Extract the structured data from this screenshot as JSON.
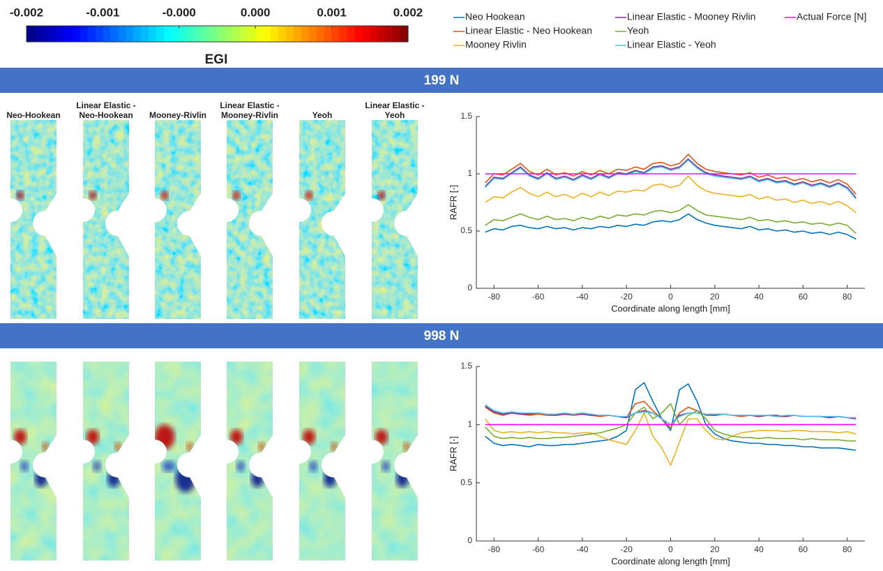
{
  "colorbar": {
    "label": "EGI",
    "lim": [
      -0.002,
      0.002
    ],
    "ticks": [
      -0.002,
      {
        "value": -0.0012,
        "label": "-0.001"
      },
      {
        "value": -0.0004,
        "label": "-0.000"
      },
      {
        "value": 0.0004,
        "label": "0.000"
      },
      {
        "value": 0.0012,
        "label": "0.001"
      },
      0.002
    ]
  },
  "panels": [
    {
      "title": "199 N",
      "specimen_labels": [
        [
          "Neo-Hookean"
        ],
        [
          "Linear Elastic -",
          "Neo-Hookean"
        ],
        [
          "Mooney-Rivlin"
        ],
        [
          "Linear Elastic -",
          "Mooney-Rivlin"
        ],
        [
          "Yeoh"
        ],
        [
          "Linear Elastic -",
          "Yeoh"
        ]
      ]
    },
    {
      "title": "998 N"
    }
  ],
  "chart_data": [
    {
      "type": "line",
      "xlabel": "Coordinate along length [mm]",
      "ylabel": "RAFR [-]",
      "xlim": [
        -88,
        88
      ],
      "ylim": [
        0,
        1.5
      ],
      "xticks": [
        -80,
        -60,
        -40,
        -20,
        0,
        20,
        40,
        60,
        80
      ],
      "yticks": [
        0,
        0.5,
        1,
        1.5
      ],
      "x": [
        -84,
        -80,
        -76,
        -72,
        -68,
        -64,
        -60,
        -56,
        -52,
        -48,
        -44,
        -40,
        -36,
        -32,
        -28,
        -24,
        -20,
        -16,
        -12,
        -8,
        -4,
        0,
        4,
        8,
        12,
        16,
        20,
        24,
        28,
        32,
        36,
        40,
        44,
        48,
        52,
        56,
        60,
        64,
        68,
        72,
        76,
        80,
        84
      ],
      "series": [
        {
          "name": "Neo Hookean",
          "color": "#0072BD",
          "values": [
            0.49,
            0.52,
            0.51,
            0.54,
            0.55,
            0.53,
            0.52,
            0.54,
            0.52,
            0.53,
            0.51,
            0.53,
            0.52,
            0.54,
            0.53,
            0.55,
            0.54,
            0.56,
            0.55,
            0.58,
            0.59,
            0.58,
            0.6,
            0.65,
            0.6,
            0.57,
            0.55,
            0.54,
            0.53,
            0.52,
            0.54,
            0.51,
            0.52,
            0.5,
            0.51,
            0.49,
            0.5,
            0.48,
            0.49,
            0.47,
            0.49,
            0.47,
            0.43
          ]
        },
        {
          "name": "Linear Elastic - Neo Hookean",
          "color": "#D95319",
          "values": [
            0.92,
            1.0,
            0.99,
            1.04,
            1.09,
            1.02,
            0.99,
            1.04,
            0.99,
            1.01,
            0.98,
            1.02,
            0.99,
            1.03,
            1.0,
            1.04,
            1.03,
            1.06,
            1.04,
            1.09,
            1.1,
            1.07,
            1.09,
            1.17,
            1.09,
            1.04,
            1.02,
            1.01,
            1.0,
            0.99,
            1.01,
            0.97,
            0.99,
            0.96,
            0.97,
            0.94,
            0.96,
            0.93,
            0.95,
            0.92,
            0.95,
            0.91,
            0.82
          ]
        },
        {
          "name": "Mooney Rivlin",
          "color": "#EDB120",
          "values": [
            0.75,
            0.8,
            0.79,
            0.84,
            0.88,
            0.83,
            0.8,
            0.84,
            0.8,
            0.82,
            0.79,
            0.83,
            0.8,
            0.84,
            0.81,
            0.85,
            0.84,
            0.86,
            0.85,
            0.9,
            0.91,
            0.88,
            0.9,
            0.98,
            0.9,
            0.85,
            0.83,
            0.82,
            0.81,
            0.8,
            0.82,
            0.78,
            0.8,
            0.77,
            0.78,
            0.75,
            0.77,
            0.74,
            0.76,
            0.73,
            0.76,
            0.72,
            0.66
          ]
        },
        {
          "name": "Linear Elastic - Mooney Rivlin",
          "color": "#7E2F8E",
          "values": [
            0.89,
            0.97,
            0.96,
            1.01,
            1.06,
            0.99,
            0.96,
            1.01,
            0.96,
            0.98,
            0.95,
            0.99,
            0.96,
            1.0,
            0.97,
            1.01,
            1.0,
            1.03,
            1.01,
            1.06,
            1.07,
            1.04,
            1.06,
            1.13,
            1.06,
            1.01,
            0.99,
            0.98,
            0.97,
            0.96,
            0.98,
            0.94,
            0.96,
            0.93,
            0.94,
            0.91,
            0.93,
            0.9,
            0.92,
            0.89,
            0.92,
            0.88,
            0.79
          ]
        },
        {
          "name": "Yeoh",
          "color": "#77AC30",
          "values": [
            0.55,
            0.6,
            0.59,
            0.62,
            0.65,
            0.62,
            0.6,
            0.63,
            0.6,
            0.61,
            0.59,
            0.62,
            0.6,
            0.63,
            0.61,
            0.64,
            0.63,
            0.65,
            0.64,
            0.67,
            0.68,
            0.66,
            0.68,
            0.73,
            0.68,
            0.64,
            0.63,
            0.62,
            0.61,
            0.6,
            0.62,
            0.59,
            0.6,
            0.58,
            0.59,
            0.57,
            0.58,
            0.56,
            0.57,
            0.55,
            0.57,
            0.55,
            0.48
          ]
        },
        {
          "name": "Linear Elastic - Yeoh",
          "color": "#4DBEEE",
          "values": [
            0.88,
            0.96,
            0.95,
            1.0,
            1.05,
            0.98,
            0.95,
            1.0,
            0.95,
            0.97,
            0.94,
            0.98,
            0.95,
            0.99,
            0.96,
            1.0,
            0.99,
            1.02,
            1.0,
            1.05,
            1.06,
            1.03,
            1.05,
            1.12,
            1.05,
            1.0,
            0.98,
            0.97,
            0.96,
            0.95,
            0.97,
            0.93,
            0.95,
            0.92,
            0.93,
            0.9,
            0.92,
            0.89,
            0.91,
            0.88,
            0.91,
            0.87,
            0.78
          ]
        },
        {
          "name": "Actual Force [N]",
          "color": "#FF00FF",
          "values": [
            1,
            1,
            1,
            1,
            1,
            1,
            1,
            1,
            1,
            1,
            1,
            1,
            1,
            1,
            1,
            1,
            1,
            1,
            1,
            1,
            1,
            1,
            1,
            1,
            1,
            1,
            1,
            1,
            1,
            1,
            1,
            1,
            1,
            1,
            1,
            1,
            1,
            1,
            1,
            1,
            1,
            1,
            1
          ]
        }
      ]
    },
    {
      "type": "line",
      "xlabel": "Coordinate along length [mm]",
      "ylabel": "RAFR [-]",
      "xlim": [
        -88,
        88
      ],
      "ylim": [
        0,
        1.5
      ],
      "xticks": [
        -80,
        -60,
        -40,
        -20,
        0,
        20,
        40,
        60,
        80
      ],
      "yticks": [
        0,
        0.5,
        1,
        1.5
      ],
      "x": [
        -84,
        -80,
        -76,
        -72,
        -68,
        -64,
        -60,
        -56,
        -52,
        -48,
        -44,
        -40,
        -36,
        -32,
        -28,
        -24,
        -20,
        -16,
        -12,
        -8,
        -4,
        0,
        4,
        8,
        12,
        16,
        20,
        24,
        28,
        32,
        36,
        40,
        44,
        48,
        52,
        56,
        60,
        64,
        68,
        72,
        76,
        80,
        84
      ],
      "series": [
        {
          "color": "#0072BD",
          "values": [
            0.9,
            0.84,
            0.82,
            0.83,
            0.82,
            0.81,
            0.83,
            0.82,
            0.82,
            0.83,
            0.83,
            0.84,
            0.85,
            0.86,
            0.87,
            0.9,
            0.95,
            1.3,
            1.36,
            1.2,
            1.05,
            0.95,
            1.3,
            1.35,
            1.2,
            1.0,
            0.92,
            0.88,
            0.86,
            0.85,
            0.84,
            0.84,
            0.83,
            0.83,
            0.82,
            0.82,
            0.81,
            0.81,
            0.8,
            0.8,
            0.8,
            0.79,
            0.78
          ]
        },
        {
          "color": "#D95319",
          "values": [
            1.15,
            1.1,
            1.08,
            1.1,
            1.09,
            1.08,
            1.09,
            1.08,
            1.08,
            1.09,
            1.08,
            1.09,
            1.08,
            1.07,
            1.08,
            1.07,
            1.06,
            1.18,
            1.2,
            1.12,
            1.05,
            0.97,
            1.1,
            1.15,
            1.12,
            1.08,
            1.08,
            1.09,
            1.08,
            1.07,
            1.08,
            1.07,
            1.08,
            1.07,
            1.07,
            1.08,
            1.07,
            1.07,
            1.07,
            1.06,
            1.07,
            1.06,
            1.05
          ]
        },
        {
          "color": "#EDB120",
          "values": [
            1.05,
            0.95,
            0.93,
            0.94,
            0.93,
            0.94,
            0.93,
            0.94,
            0.93,
            0.93,
            0.92,
            0.93,
            0.93,
            0.9,
            0.87,
            0.85,
            0.83,
            0.95,
            1.1,
            0.9,
            0.8,
            0.65,
            0.85,
            1.05,
            1.05,
            0.95,
            0.88,
            0.87,
            0.9,
            0.93,
            0.94,
            0.95,
            0.95,
            0.95,
            0.94,
            0.95,
            0.95,
            0.94,
            0.94,
            0.94,
            0.93,
            0.94,
            0.92
          ]
        },
        {
          "color": "#7E2F8E",
          "values": [
            1.16,
            1.11,
            1.09,
            1.1,
            1.09,
            1.09,
            1.1,
            1.09,
            1.08,
            1.09,
            1.09,
            1.09,
            1.08,
            1.08,
            1.08,
            1.07,
            1.06,
            1.1,
            1.12,
            1.1,
            1.05,
            1.0,
            1.08,
            1.1,
            1.1,
            1.09,
            1.08,
            1.09,
            1.08,
            1.08,
            1.08,
            1.07,
            1.08,
            1.08,
            1.07,
            1.08,
            1.07,
            1.07,
            1.07,
            1.06,
            1.07,
            1.06,
            1.05
          ]
        },
        {
          "color": "#77AC30",
          "values": [
            0.98,
            0.9,
            0.88,
            0.89,
            0.88,
            0.89,
            0.88,
            0.88,
            0.89,
            0.89,
            0.9,
            0.91,
            0.92,
            0.93,
            0.95,
            0.97,
            1.0,
            1.1,
            1.15,
            1.05,
            1.1,
            1.18,
            1.0,
            1.08,
            1.12,
            1.05,
            0.95,
            0.92,
            0.9,
            0.89,
            0.89,
            0.88,
            0.89,
            0.88,
            0.88,
            0.88,
            0.87,
            0.88,
            0.87,
            0.87,
            0.87,
            0.86,
            0.86
          ]
        },
        {
          "color": "#4DBEEE",
          "values": [
            1.17,
            1.12,
            1.1,
            1.11,
            1.1,
            1.1,
            1.1,
            1.09,
            1.09,
            1.1,
            1.09,
            1.1,
            1.09,
            1.08,
            1.08,
            1.07,
            1.07,
            1.1,
            1.11,
            1.1,
            1.05,
            1.0,
            1.07,
            1.1,
            1.1,
            1.09,
            1.09,
            1.09,
            1.08,
            1.08,
            1.08,
            1.08,
            1.08,
            1.07,
            1.08,
            1.08,
            1.07,
            1.07,
            1.07,
            1.07,
            1.07,
            1.06,
            1.06
          ]
        },
        {
          "color": "#FF00FF",
          "values": [
            1,
            1,
            1,
            1,
            1,
            1,
            1,
            1,
            1,
            1,
            1,
            1,
            1,
            1,
            1,
            1,
            1,
            1,
            1,
            1,
            1,
            1,
            1,
            1,
            1,
            1,
            1,
            1,
            1,
            1,
            1,
            1,
            1,
            1,
            1,
            1,
            1,
            1,
            1,
            1,
            1,
            1,
            1
          ]
        }
      ]
    }
  ]
}
